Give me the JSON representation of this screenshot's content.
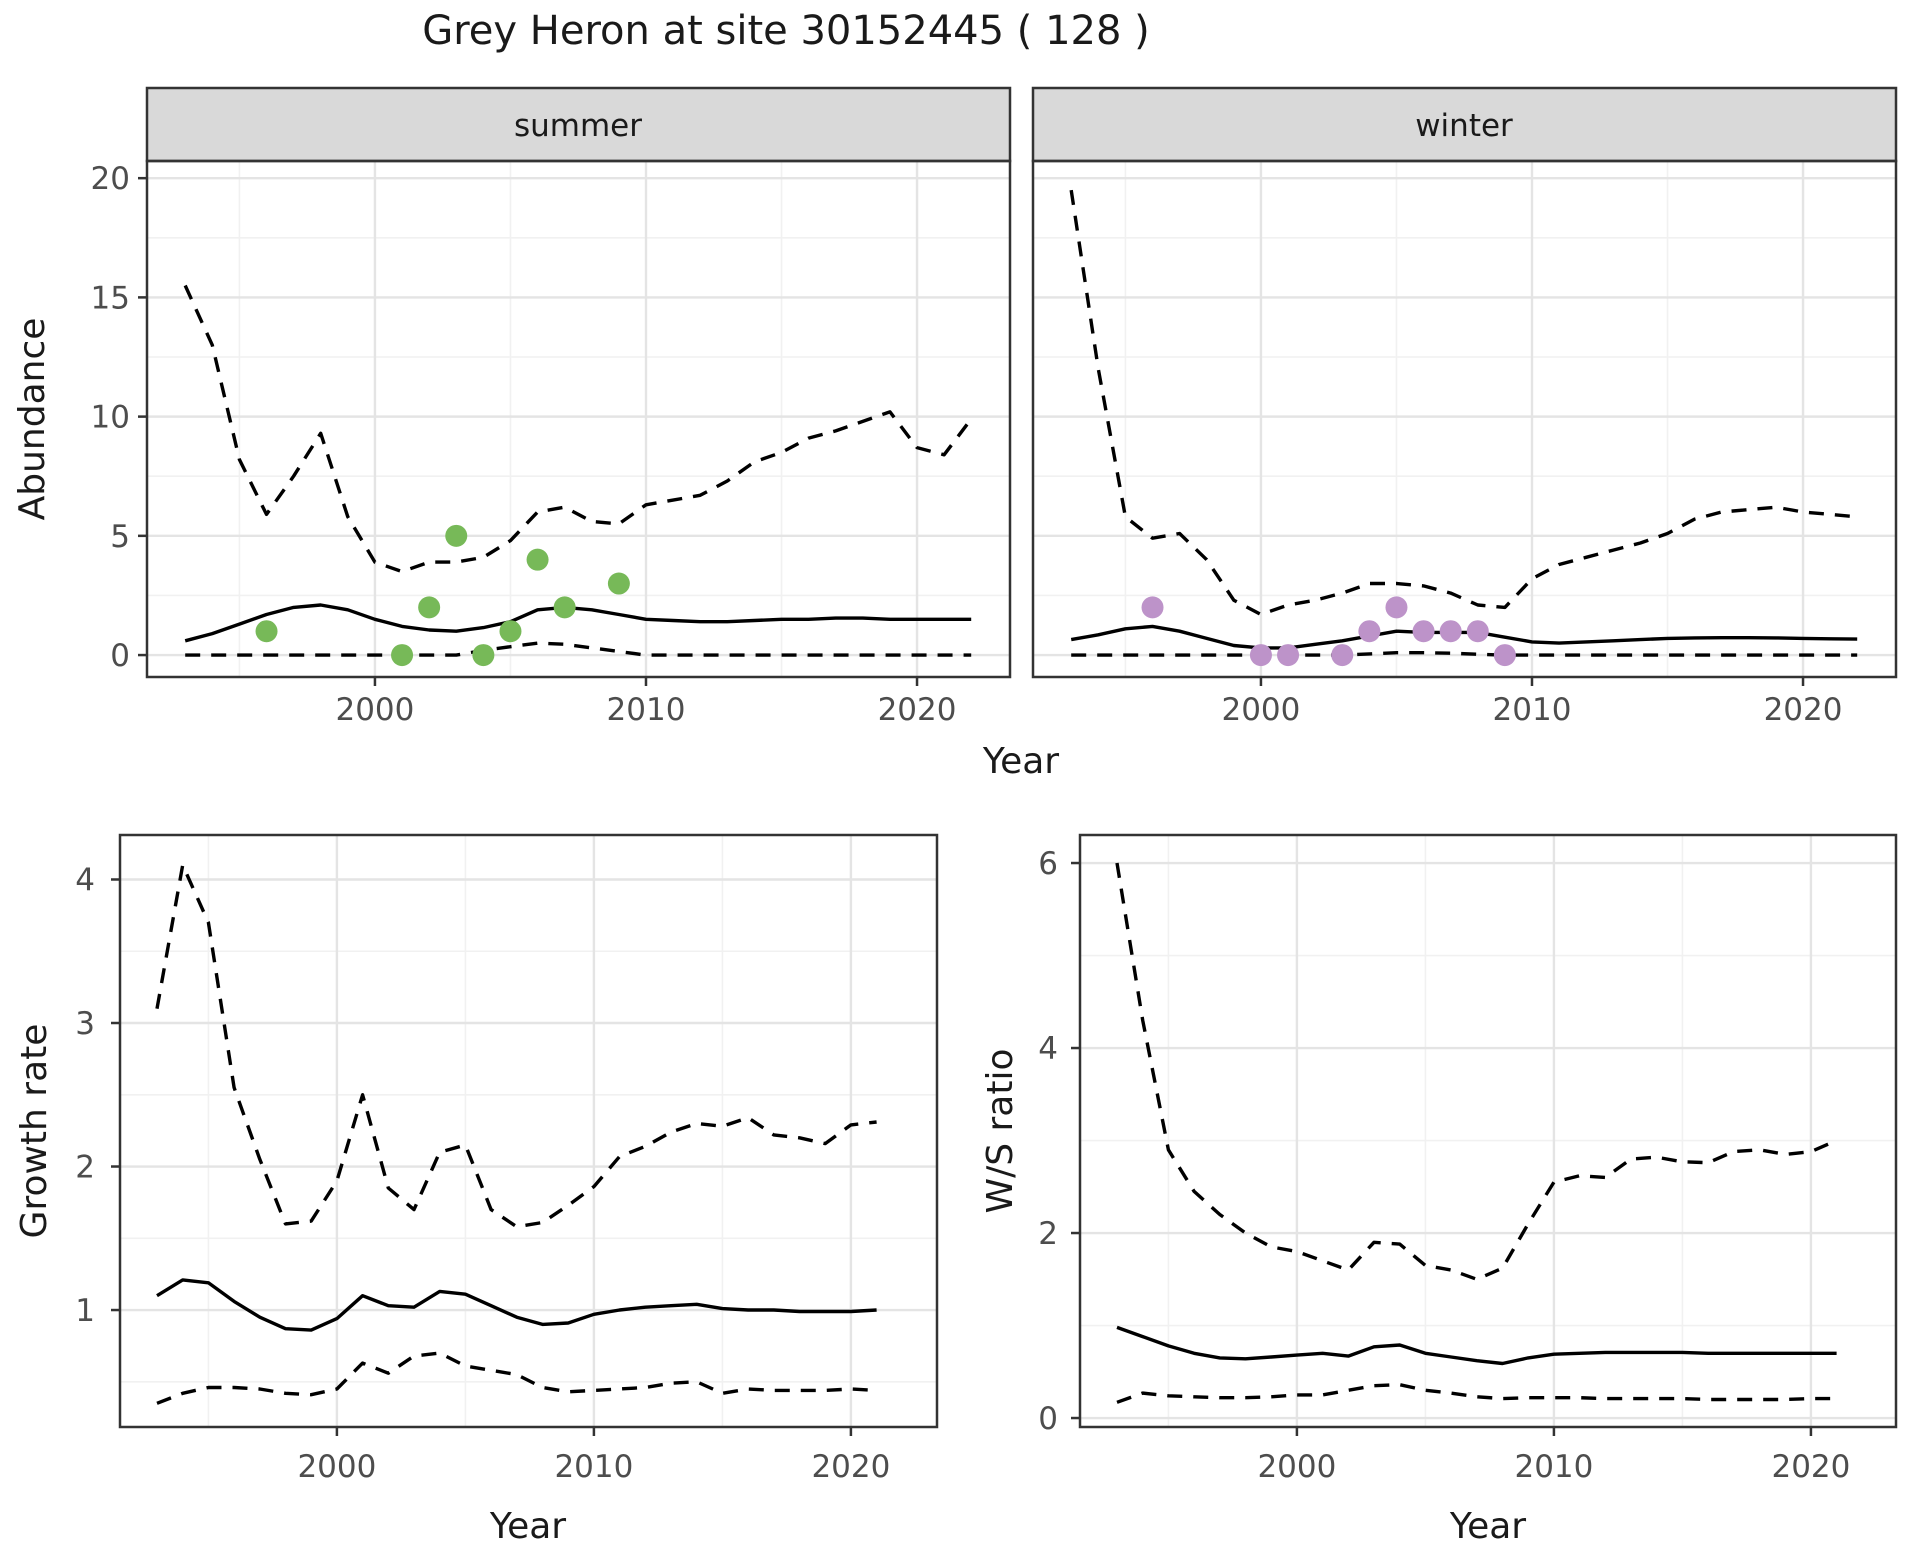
{
  "title": "Grey Heron at site 30152445 ( 128 )",
  "colors": {
    "background": "#ffffff",
    "panel_bg": "#ffffff",
    "strip_bg": "#d9d9d9",
    "panel_border": "#333333",
    "grid_major": "#e4e4e4",
    "grid_minor": "#f1f1f1",
    "line": "#000000",
    "tick_text": "#4d4d4d",
    "summer_point": "#77b958",
    "winter_point": "#bd93c9"
  },
  "chart_data": [
    {
      "name": "abundance-summer",
      "type": "line",
      "facet_label": "summer",
      "xlabel": "Year",
      "ylabel": "Abundance",
      "xlim": [
        1991.59,
        2023.43
      ],
      "ylim": [
        -0.92,
        20.72
      ],
      "x_ticks": [
        2000,
        2010,
        2020
      ],
      "x_minor": [
        1995,
        2005,
        2015
      ],
      "y_ticks": [
        0,
        5,
        10,
        15,
        20
      ],
      "y_minor": [
        2.5,
        7.5,
        12.5,
        17.5
      ],
      "grid": true,
      "legend": "none",
      "x": [
        1993,
        1994,
        1995,
        1996,
        1997,
        1998,
        1999,
        2000,
        2001,
        2002,
        2003,
        2004,
        2005,
        2006,
        2007,
        2008,
        2009,
        2010,
        2011,
        2012,
        2013,
        2014,
        2015,
        2016,
        2017,
        2018,
        2019,
        2020,
        2021,
        2022
      ],
      "series": [
        {
          "name": "upper-ci",
          "style": "dashed",
          "y": [
            15.5,
            13.0,
            8.2,
            5.9,
            7.5,
            9.3,
            5.8,
            3.9,
            3.5,
            3.9,
            3.9,
            4.1,
            4.8,
            6.0,
            6.2,
            5.6,
            5.5,
            6.3,
            6.5,
            6.7,
            7.3,
            8.1,
            8.5,
            9.1,
            9.4,
            9.8,
            10.2,
            8.7,
            8.4,
            9.9
          ]
        },
        {
          "name": "median",
          "style": "solid",
          "y": [
            0.6,
            0.9,
            1.3,
            1.7,
            2.0,
            2.1,
            1.9,
            1.5,
            1.2,
            1.05,
            1.0,
            1.15,
            1.4,
            1.9,
            2.0,
            1.9,
            1.7,
            1.5,
            1.45,
            1.4,
            1.4,
            1.45,
            1.5,
            1.5,
            1.55,
            1.55,
            1.5,
            1.5,
            1.5,
            1.5
          ]
        },
        {
          "name": "lower-ci",
          "style": "dashed",
          "y": [
            0,
            0,
            0,
            0,
            0,
            0,
            0,
            0,
            0,
            0,
            0,
            0.2,
            0.35,
            0.5,
            0.45,
            0.3,
            0.15,
            0,
            0,
            0,
            0,
            0,
            0,
            0,
            0,
            0,
            0,
            0,
            0,
            0
          ]
        }
      ],
      "points": {
        "name": "observed-counts",
        "color_key": "summer_point",
        "x": [
          1996,
          2001,
          2002,
          2003,
          2004,
          2005,
          2006,
          2007,
          2009
        ],
        "y": [
          1,
          0,
          2,
          5,
          0,
          1,
          4,
          2,
          3
        ]
      }
    },
    {
      "name": "abundance-winter",
      "type": "line",
      "facet_label": "winter",
      "xlabel": "Year",
      "ylabel": "Abundance",
      "xlim": [
        1991.59,
        2023.43
      ],
      "ylim": [
        -0.92,
        20.72
      ],
      "x_ticks": [
        2000,
        2010,
        2020
      ],
      "x_minor": [
        1995,
        2005,
        2015
      ],
      "y_ticks": [
        0,
        5,
        10,
        15,
        20
      ],
      "y_minor": [
        2.5,
        7.5,
        12.5,
        17.5
      ],
      "grid": true,
      "legend": "none",
      "x": [
        1993,
        1994,
        1995,
        1996,
        1997,
        1998,
        1999,
        2000,
        2001,
        2002,
        2003,
        2004,
        2005,
        2006,
        2007,
        2008,
        2009,
        2010,
        2011,
        2012,
        2013,
        2014,
        2015,
        2016,
        2017,
        2018,
        2019,
        2020,
        2021,
        2022
      ],
      "series": [
        {
          "name": "upper-ci",
          "style": "dashed",
          "y": [
            19.5,
            12.0,
            5.8,
            4.9,
            5.1,
            4.0,
            2.3,
            1.7,
            2.1,
            2.3,
            2.6,
            3.0,
            3.0,
            2.9,
            2.6,
            2.1,
            2.0,
            3.2,
            3.8,
            4.1,
            4.4,
            4.7,
            5.1,
            5.7,
            6.0,
            6.1,
            6.2,
            6.0,
            5.9,
            5.8
          ]
        },
        {
          "name": "median",
          "style": "solid",
          "y": [
            0.65,
            0.85,
            1.1,
            1.2,
            1.0,
            0.7,
            0.4,
            0.3,
            0.3,
            0.45,
            0.6,
            0.8,
            1.0,
            0.95,
            0.95,
            0.95,
            0.75,
            0.55,
            0.5,
            0.55,
            0.6,
            0.65,
            0.7,
            0.72,
            0.73,
            0.73,
            0.72,
            0.7,
            0.68,
            0.67
          ]
        },
        {
          "name": "lower-ci",
          "style": "dashed",
          "y": [
            0,
            0,
            0,
            0,
            0,
            0,
            0,
            0,
            0,
            0,
            0,
            0.05,
            0.1,
            0.1,
            0.08,
            0.03,
            0,
            0,
            0,
            0,
            0,
            0,
            0,
            0,
            0,
            0,
            0,
            0,
            0,
            0
          ]
        }
      ],
      "points": {
        "name": "observed-counts",
        "color_key": "winter_point",
        "x": [
          1996,
          2000,
          2001,
          2003,
          2004,
          2005,
          2006,
          2007,
          2008,
          2009
        ],
        "y": [
          2,
          0,
          0,
          0,
          1,
          2,
          1,
          1,
          1,
          0
        ]
      }
    },
    {
      "name": "growth-rate",
      "type": "line",
      "facet_label": null,
      "xlabel": "Year",
      "ylabel": "Growth rate",
      "xlim": [
        1991.56,
        2023.35
      ],
      "ylim": [
        0.185,
        4.31
      ],
      "x_ticks": [
        2000,
        2010,
        2020
      ],
      "x_minor": [
        1995,
        2005,
        2015
      ],
      "y_ticks": [
        1,
        2,
        3,
        4
      ],
      "y_minor": [
        0.5,
        1.5,
        2.5,
        3.5
      ],
      "grid": true,
      "legend": "none",
      "x": [
        1993,
        1994,
        1995,
        1996,
        1997,
        1998,
        1999,
        2000,
        2001,
        2002,
        2003,
        2004,
        2005,
        2006,
        2007,
        2008,
        2009,
        2010,
        2011,
        2012,
        2013,
        2014,
        2015,
        2016,
        2017,
        2018,
        2019,
        2020,
        2021
      ],
      "series": [
        {
          "name": "upper-ci",
          "style": "dashed",
          "y": [
            3.1,
            4.1,
            3.7,
            2.55,
            2.05,
            1.6,
            1.62,
            1.9,
            2.5,
            1.85,
            1.7,
            2.1,
            2.15,
            1.7,
            1.58,
            1.61,
            1.73,
            1.86,
            2.07,
            2.14,
            2.24,
            2.3,
            2.28,
            2.34,
            2.22,
            2.2,
            2.16,
            2.29,
            2.31
          ]
        },
        {
          "name": "median",
          "style": "solid",
          "y": [
            1.1,
            1.21,
            1.19,
            1.06,
            0.95,
            0.87,
            0.86,
            0.94,
            1.1,
            1.03,
            1.02,
            1.13,
            1.11,
            1.03,
            0.95,
            0.9,
            0.91,
            0.97,
            1.0,
            1.02,
            1.03,
            1.04,
            1.01,
            1.0,
            1.0,
            0.99,
            0.99,
            0.99,
            1.0
          ]
        },
        {
          "name": "lower-ci",
          "style": "dashed",
          "y": [
            0.35,
            0.42,
            0.46,
            0.46,
            0.45,
            0.42,
            0.41,
            0.45,
            0.63,
            0.56,
            0.68,
            0.7,
            0.61,
            0.58,
            0.55,
            0.46,
            0.43,
            0.44,
            0.45,
            0.46,
            0.49,
            0.5,
            0.42,
            0.45,
            0.44,
            0.44,
            0.44,
            0.45,
            0.44
          ]
        }
      ],
      "points": null
    },
    {
      "name": "ws-ratio",
      "type": "line",
      "facet_label": null,
      "xlabel": "Year",
      "ylabel": "W/S ratio",
      "xlim": [
        1991.56,
        2023.31
      ],
      "ylim": [
        -0.097,
        6.303
      ],
      "x_ticks": [
        2000,
        2010,
        2020
      ],
      "x_minor": [
        1995,
        2005,
        2015
      ],
      "y_ticks": [
        0,
        2,
        4,
        6
      ],
      "y_minor": [
        1,
        3,
        5
      ],
      "grid": true,
      "legend": "none",
      "x": [
        1993,
        1994,
        1995,
        1996,
        1997,
        1998,
        1999,
        2000,
        2001,
        2002,
        2003,
        2004,
        2005,
        2006,
        2007,
        2008,
        2009,
        2010,
        2011,
        2012,
        2013,
        2014,
        2015,
        2016,
        2017,
        2018,
        2019,
        2020,
        2021
      ],
      "series": [
        {
          "name": "upper-ci",
          "style": "dashed",
          "y": [
            6.0,
            4.3,
            2.9,
            2.45,
            2.2,
            2.0,
            1.85,
            1.8,
            1.7,
            1.6,
            1.9,
            1.88,
            1.65,
            1.6,
            1.5,
            1.62,
            2.1,
            2.55,
            2.62,
            2.6,
            2.8,
            2.82,
            2.77,
            2.76,
            2.88,
            2.9,
            2.85,
            2.88,
            3.0
          ]
        },
        {
          "name": "median",
          "style": "solid",
          "y": [
            0.98,
            0.88,
            0.78,
            0.7,
            0.65,
            0.64,
            0.66,
            0.68,
            0.7,
            0.67,
            0.77,
            0.79,
            0.7,
            0.66,
            0.62,
            0.59,
            0.65,
            0.69,
            0.7,
            0.71,
            0.71,
            0.71,
            0.71,
            0.7,
            0.7,
            0.7,
            0.7,
            0.7,
            0.7
          ]
        },
        {
          "name": "lower-ci",
          "style": "dashed",
          "y": [
            0.17,
            0.27,
            0.24,
            0.23,
            0.22,
            0.22,
            0.23,
            0.25,
            0.25,
            0.3,
            0.35,
            0.36,
            0.3,
            0.27,
            0.23,
            0.21,
            0.22,
            0.22,
            0.22,
            0.21,
            0.21,
            0.21,
            0.21,
            0.2,
            0.2,
            0.2,
            0.2,
            0.21,
            0.21
          ]
        }
      ],
      "points": null
    }
  ]
}
